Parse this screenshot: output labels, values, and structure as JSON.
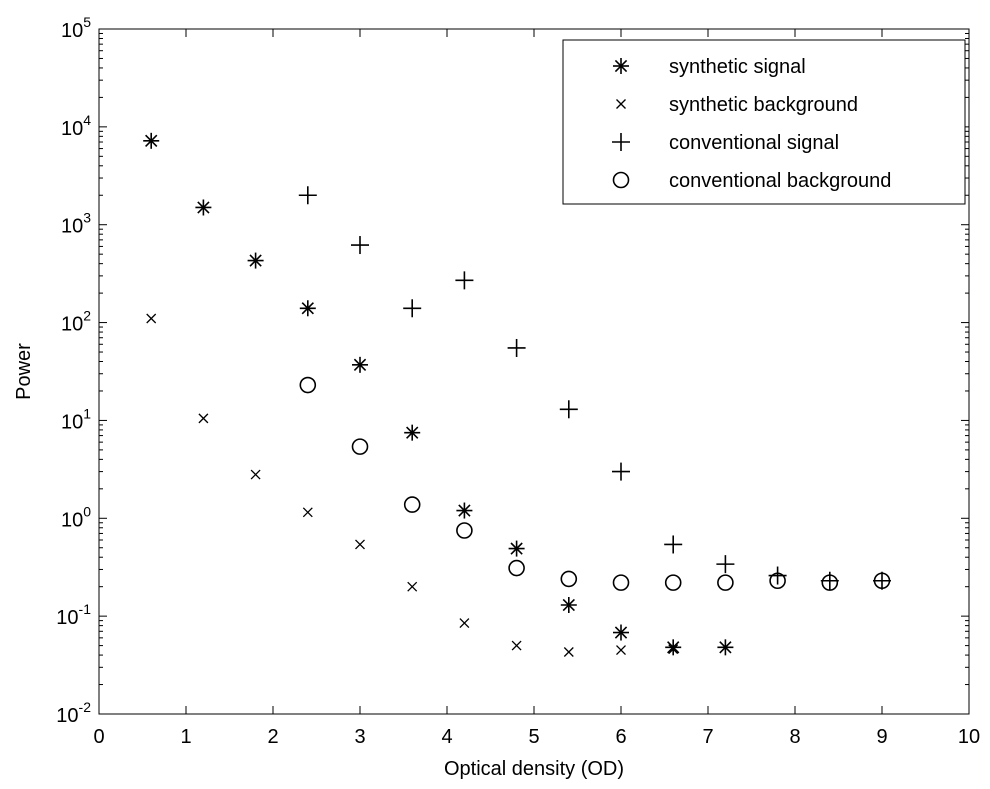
{
  "chart_data": {
    "type": "scatter",
    "xlabel": "Optical density (OD)",
    "ylabel": "Power",
    "xlim": [
      0,
      10
    ],
    "ylim": [
      0.01,
      100000
    ],
    "yscale": "log",
    "x_ticks": [
      0,
      1,
      2,
      3,
      4,
      5,
      6,
      7,
      8,
      9,
      10
    ],
    "y_ticks": [
      {
        "base": "10",
        "exp": "-2",
        "value": 0.01
      },
      {
        "base": "10",
        "exp": "-1",
        "value": 0.1
      },
      {
        "base": "10",
        "exp": "0",
        "value": 1
      },
      {
        "base": "10",
        "exp": "1",
        "value": 10
      },
      {
        "base": "10",
        "exp": "2",
        "value": 100
      },
      {
        "base": "10",
        "exp": "3",
        "value": 1000
      },
      {
        "base": "10",
        "exp": "4",
        "value": 10000
      },
      {
        "base": "10",
        "exp": "5",
        "value": 100000
      }
    ],
    "legend_position": "top-right",
    "grid": false,
    "series": [
      {
        "name": "synthetic signal",
        "marker": "asterisk",
        "color": "#000000",
        "x": [
          0.6,
          1.2,
          1.8,
          2.4,
          3.0,
          3.6,
          4.2,
          4.8,
          5.4,
          6.0,
          6.6,
          7.2
        ],
        "y": [
          7200,
          1500,
          430,
          140,
          37,
          7.5,
          1.2,
          0.49,
          0.13,
          0.068,
          0.048,
          0.048
        ]
      },
      {
        "name": "synthetic background",
        "marker": "x",
        "color": "#000000",
        "x": [
          0.6,
          1.2,
          1.8,
          2.4,
          3.0,
          3.6,
          4.2,
          4.8,
          5.4,
          6.0,
          6.6
        ],
        "y": [
          110,
          10.5,
          2.8,
          1.15,
          0.54,
          0.2,
          0.085,
          0.05,
          0.043,
          0.045,
          0.046
        ]
      },
      {
        "name": "conventional signal",
        "marker": "plus",
        "color": "#000000",
        "x": [
          2.4,
          3.0,
          3.6,
          4.2,
          4.8,
          5.4,
          6.0,
          6.6,
          7.2,
          7.8,
          8.4,
          9.0
        ],
        "y": [
          2000,
          620,
          140,
          270,
          55,
          13,
          3.0,
          0.54,
          0.34,
          0.26,
          0.23,
          0.23
        ]
      },
      {
        "name": "conventional background",
        "marker": "circle",
        "color": "#000000",
        "x": [
          2.4,
          3.0,
          3.6,
          4.2,
          4.8,
          5.4,
          6.0,
          6.6,
          7.2,
          7.8,
          8.4,
          9.0
        ],
        "y": [
          23,
          5.4,
          1.38,
          0.75,
          0.31,
          0.24,
          0.22,
          0.22,
          0.22,
          0.23,
          0.22,
          0.23
        ]
      }
    ]
  }
}
